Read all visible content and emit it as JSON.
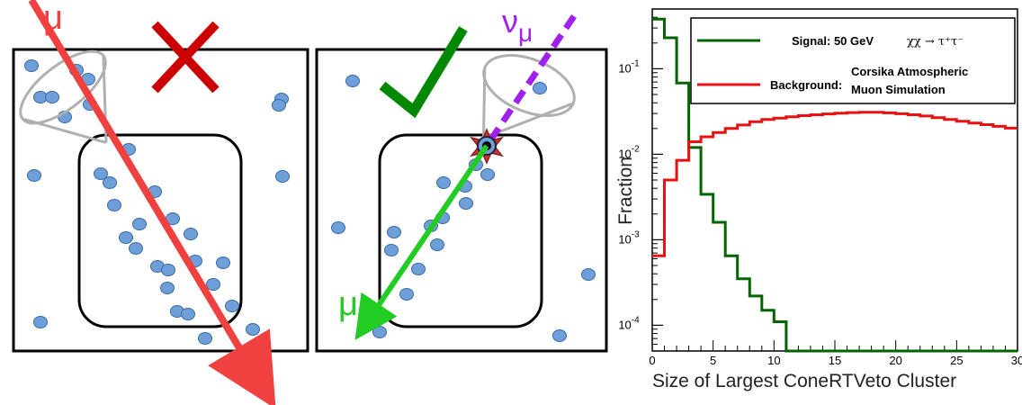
{
  "diagram": {
    "left_label": "μ",
    "right_label_neutrino": "ν",
    "right_label_neutrino_sub": "μ",
    "right_label_muon": "μ",
    "left_verdict": "cross-mark-icon",
    "right_verdict": "check-mark-icon",
    "colors": {
      "muon_track": "#f04040",
      "signal_track": "#22cc22",
      "neutrino": "#a020f0",
      "dom": "#6f9fd8",
      "cross": "#cc0000",
      "check": "#008800",
      "cone": "#b0b0b0"
    }
  },
  "chart_data": {
    "type": "line",
    "step": true,
    "xlabel": "Size of Largest ConeRTVeto Cluster",
    "ylabel": "Fraction",
    "xlim": [
      0,
      30
    ],
    "ylim": [
      5e-05,
      0.5
    ],
    "yscale": "log",
    "xticks": [
      0,
      5,
      10,
      15,
      20,
      25,
      30
    ],
    "yticks": [
      {
        "value": 0.0001,
        "mant": "10",
        "exp": "-4"
      },
      {
        "value": 0.001,
        "mant": "10",
        "exp": "-3"
      },
      {
        "value": 0.01,
        "mant": "10",
        "exp": "-2"
      },
      {
        "value": 0.1,
        "mant": "10",
        "exp": "-1"
      }
    ],
    "x_edges": [
      0,
      1,
      2,
      3,
      4,
      5,
      6,
      7,
      8,
      9,
      10,
      11,
      12,
      13,
      14,
      15,
      16,
      17,
      18,
      19,
      20,
      21,
      22,
      23,
      24,
      25,
      26,
      27,
      28,
      29,
      30
    ],
    "series": [
      {
        "label_prefix": "Signal: 50 GeV",
        "label_physics": "χχ → τ⁺τ⁻",
        "color": "#006400",
        "values": [
          0.38,
          0.23,
          0.068,
          0.012,
          0.0034,
          0.0016,
          0.00065,
          0.00035,
          0.00022,
          0.00015,
          0.00011,
          5e-05,
          5e-05,
          5e-05,
          5e-05,
          5e-05,
          5e-05,
          5e-05,
          5e-05,
          5e-05,
          5e-05,
          5e-05,
          5e-05,
          5e-05,
          5e-05,
          5e-05,
          5e-05,
          5e-05,
          5e-05,
          5e-05
        ]
      },
      {
        "label_prefix": "Background:",
        "label_line1": "Corsika Atmospheric",
        "label_line2": "Muon Simulation",
        "color": "#e81010",
        "values": [
          0.00065,
          0.005,
          0.0085,
          0.014,
          0.016,
          0.018,
          0.02,
          0.022,
          0.024,
          0.0255,
          0.0265,
          0.0275,
          0.0283,
          0.029,
          0.0296,
          0.0302,
          0.0307,
          0.031,
          0.031,
          0.0305,
          0.0298,
          0.029,
          0.028,
          0.0268,
          0.0255,
          0.0243,
          0.0232,
          0.0222,
          0.0212,
          0.0202
        ]
      }
    ]
  }
}
